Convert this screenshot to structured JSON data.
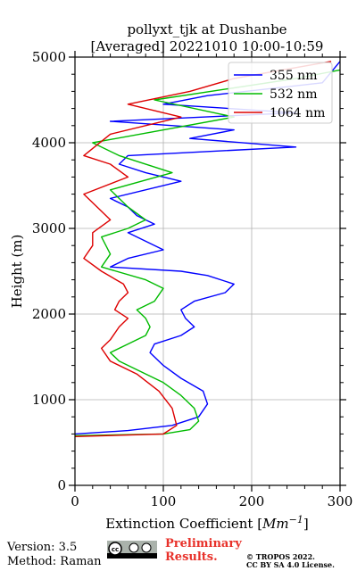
{
  "chart_data": {
    "type": "line",
    "title": "pollyxt_tjk at Dushanbe",
    "subtitle": "[Averaged] 20221010 10:00-10:59",
    "xlabel": "Extinction Coefficient [Mm⁻¹]",
    "ylabel": "Height (m)",
    "xlim": [
      0,
      300
    ],
    "ylim": [
      0,
      5000
    ],
    "xticks": [
      "0",
      "100",
      "200",
      "300"
    ],
    "yticks": [
      "0",
      "1000",
      "2000",
      "3000",
      "4000",
      "5000"
    ],
    "grid": true,
    "legend_position": "top-right",
    "series": [
      {
        "name": "355 nm",
        "color": "#0000ff",
        "points": [
          [
            0,
            600
          ],
          [
            60,
            640
          ],
          [
            110,
            700
          ],
          [
            140,
            800
          ],
          [
            150,
            950
          ],
          [
            145,
            1100
          ],
          [
            120,
            1250
          ],
          [
            100,
            1400
          ],
          [
            85,
            1550
          ],
          [
            90,
            1650
          ],
          [
            120,
            1750
          ],
          [
            135,
            1850
          ],
          [
            125,
            1950
          ],
          [
            120,
            2050
          ],
          [
            135,
            2150
          ],
          [
            170,
            2250
          ],
          [
            180,
            2350
          ],
          [
            150,
            2450
          ],
          [
            120,
            2500
          ],
          [
            40,
            2550
          ],
          [
            60,
            2650
          ],
          [
            100,
            2750
          ],
          [
            80,
            2850
          ],
          [
            60,
            2950
          ],
          [
            90,
            3050
          ],
          [
            70,
            3150
          ],
          [
            60,
            3250
          ],
          [
            40,
            3350
          ],
          [
            120,
            3550
          ],
          [
            80,
            3650
          ],
          [
            50,
            3750
          ],
          [
            60,
            3850
          ],
          [
            250,
            3950
          ],
          [
            130,
            4050
          ],
          [
            180,
            4150
          ],
          [
            40,
            4250
          ],
          [
            250,
            4350
          ],
          [
            100,
            4450
          ],
          [
            150,
            4550
          ],
          [
            280,
            4700
          ],
          [
            300,
            4950
          ]
        ]
      },
      {
        "name": "532 nm",
        "color": "#00bb00",
        "points": [
          [
            0,
            580
          ],
          [
            100,
            600
          ],
          [
            130,
            650
          ],
          [
            140,
            750
          ],
          [
            135,
            900
          ],
          [
            120,
            1050
          ],
          [
            100,
            1200
          ],
          [
            70,
            1350
          ],
          [
            50,
            1450
          ],
          [
            40,
            1550
          ],
          [
            60,
            1650
          ],
          [
            80,
            1750
          ],
          [
            85,
            1850
          ],
          [
            80,
            1950
          ],
          [
            70,
            2050
          ],
          [
            90,
            2150
          ],
          [
            100,
            2300
          ],
          [
            80,
            2400
          ],
          [
            30,
            2550
          ],
          [
            40,
            2700
          ],
          [
            30,
            2900
          ],
          [
            60,
            3000
          ],
          [
            80,
            3100
          ],
          [
            60,
            3250
          ],
          [
            40,
            3450
          ],
          [
            110,
            3650
          ],
          [
            50,
            3850
          ],
          [
            20,
            4000
          ],
          [
            180,
            4300
          ],
          [
            90,
            4500
          ],
          [
            250,
            4750
          ],
          [
            300,
            4850
          ]
        ]
      },
      {
        "name": "1064 nm",
        "color": "#dd0000",
        "points": [
          [
            0,
            570
          ],
          [
            100,
            600
          ],
          [
            115,
            700
          ],
          [
            110,
            900
          ],
          [
            95,
            1100
          ],
          [
            70,
            1300
          ],
          [
            40,
            1450
          ],
          [
            30,
            1600
          ],
          [
            40,
            1700
          ],
          [
            50,
            1850
          ],
          [
            60,
            1950
          ],
          [
            45,
            2050
          ],
          [
            50,
            2150
          ],
          [
            60,
            2250
          ],
          [
            55,
            2350
          ],
          [
            30,
            2500
          ],
          [
            10,
            2650
          ],
          [
            20,
            2800
          ],
          [
            20,
            2950
          ],
          [
            40,
            3100
          ],
          [
            30,
            3200
          ],
          [
            10,
            3400
          ],
          [
            60,
            3600
          ],
          [
            40,
            3750
          ],
          [
            10,
            3850
          ],
          [
            40,
            4100
          ],
          [
            120,
            4300
          ],
          [
            60,
            4450
          ],
          [
            130,
            4600
          ],
          [
            180,
            4750
          ],
          [
            290,
            4950
          ]
        ]
      }
    ]
  },
  "footer": {
    "version": "Version: 3.5",
    "method": "Method: Raman",
    "prelim_line1": "Preliminary",
    "prelim_line2": "Results.",
    "copyright_line1": "© TROPOS 2022.",
    "copyright_line2": "CC BY SA 4.0 License."
  }
}
